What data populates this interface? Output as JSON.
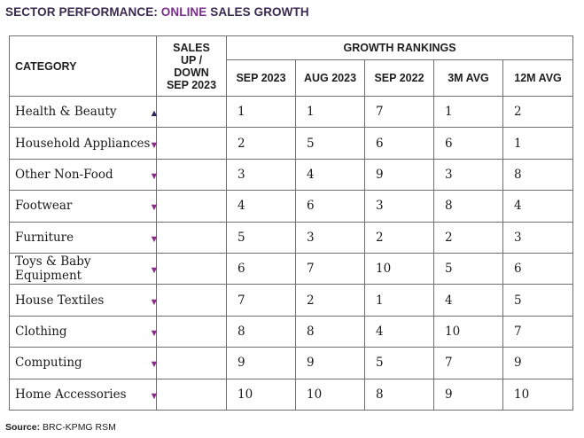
{
  "title": {
    "prefix": "SECTOR PERFORMANCE:",
    "accent": "ONLINE",
    "suffix": "SALES GROWTH"
  },
  "headers": {
    "category": "CATEGORY",
    "sales_line1": "SALES",
    "sales_line2": "UP /",
    "sales_line3": "DOWN",
    "sales_line4": "SEP 2023",
    "growth_rankings": "GROWTH RANKINGS",
    "columns": [
      "SEP 2023",
      "AUG 2023",
      "SEP 2022",
      "3M AVG",
      "12M AVG"
    ]
  },
  "rows": [
    {
      "category": "Health & Beauty",
      "arrow": "▲",
      "trend": "up",
      "values": [
        "1",
        "1",
        "7",
        "1",
        "2"
      ]
    },
    {
      "category": "Household Appliances",
      "arrow": "▼",
      "trend": "down",
      "values": [
        "2",
        "5",
        "6",
        "6",
        "1"
      ]
    },
    {
      "category": "Other Non-Food",
      "arrow": "▼",
      "trend": "down",
      "values": [
        "3",
        "4",
        "9",
        "3",
        "8"
      ]
    },
    {
      "category": "Footwear",
      "arrow": "▼",
      "trend": "down",
      "values": [
        "4",
        "6",
        "3",
        "8",
        "4"
      ]
    },
    {
      "category": "Furniture",
      "arrow": "▼",
      "trend": "down",
      "values": [
        "5",
        "3",
        "2",
        "2",
        "3"
      ]
    },
    {
      "category": "Toys & Baby Equipment",
      "arrow": "▼",
      "trend": "down",
      "values": [
        "6",
        "7",
        "10",
        "5",
        "6"
      ]
    },
    {
      "category": "House Textiles",
      "arrow": "▼",
      "trend": "down",
      "values": [
        "7",
        "2",
        "1",
        "4",
        "5"
      ]
    },
    {
      "category": "Clothing",
      "arrow": "▼",
      "trend": "down",
      "values": [
        "8",
        "8",
        "4",
        "10",
        "7"
      ]
    },
    {
      "category": "Computing",
      "arrow": "▼",
      "trend": "down",
      "values": [
        "9",
        "9",
        "5",
        "7",
        "9"
      ]
    },
    {
      "category": "Home Accessories",
      "arrow": "▼",
      "trend": "down",
      "values": [
        "10",
        "10",
        "8",
        "9",
        "10"
      ]
    }
  ],
  "source": {
    "label": "Source:",
    "text": "BRC-KPMG RSM"
  },
  "colors": {
    "up": "#2d2160",
    "down": "#8a2a8a",
    "accent": "#7a2f8c"
  }
}
